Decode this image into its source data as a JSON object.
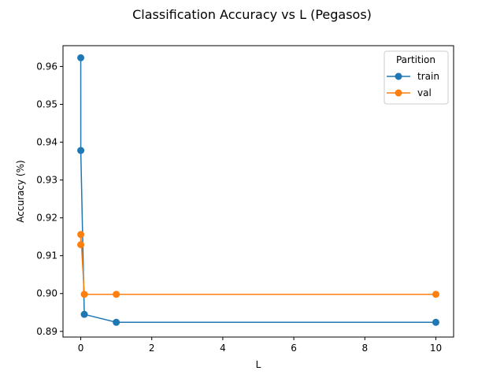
{
  "chart_data": {
    "type": "line",
    "title": "Classification Accuracy vs L (Pegasos)",
    "xlabel": "L",
    "ylabel": "Accuracy (%)",
    "xlim": [
      -0.5,
      10.5
    ],
    "ylim": [
      0.8885,
      0.9655
    ],
    "xticks": [
      0,
      2,
      4,
      6,
      8,
      10
    ],
    "xtick_labels": [
      "0",
      "2",
      "4",
      "6",
      "8",
      "10"
    ],
    "yticks": [
      0.89,
      0.9,
      0.91,
      0.92,
      0.93,
      0.94,
      0.95,
      0.96
    ],
    "ytick_labels": [
      "0.89",
      "0.90",
      "0.91",
      "0.92",
      "0.93",
      "0.94",
      "0.95",
      "0.96"
    ],
    "grid": false,
    "legend": {
      "title": "Partition",
      "position": "top-right"
    },
    "series": [
      {
        "name": "train",
        "color": "#1f77b4",
        "marker": "circle",
        "x": [
          0.0001,
          0.001,
          0.1,
          1,
          10
        ],
        "y": [
          0.9623,
          0.9378,
          0.8945,
          0.8924,
          0.8924
        ]
      },
      {
        "name": "val",
        "color": "#ff7f0e",
        "marker": "circle",
        "x": [
          0.0001,
          0.001,
          0.1,
          1,
          10
        ],
        "y": [
          0.9129,
          0.9156,
          0.8998,
          0.8998,
          0.8998
        ]
      }
    ]
  }
}
